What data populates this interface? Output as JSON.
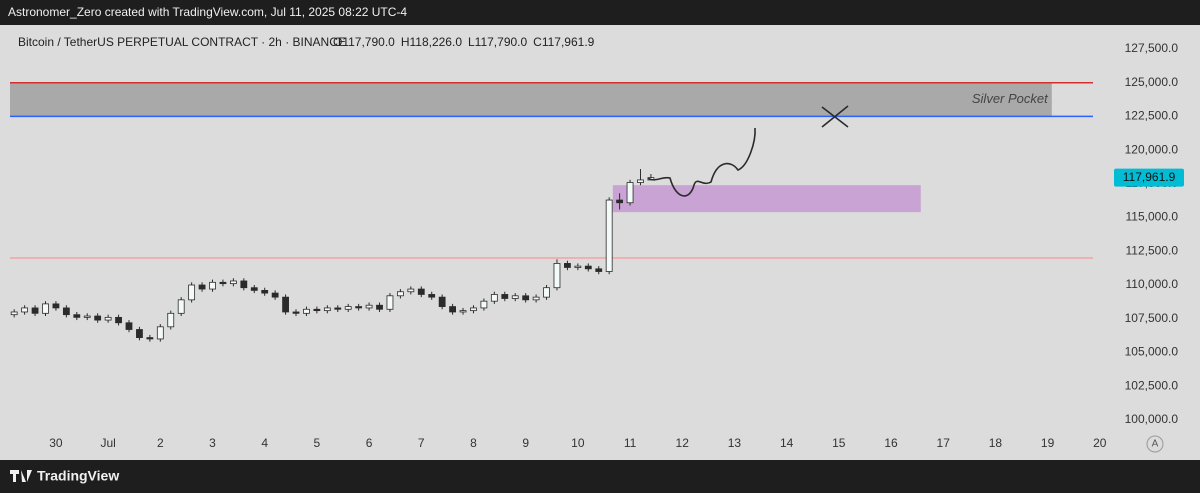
{
  "chart_data": {
    "type": "candlestick",
    "watermark": "Astronomer_Zero created with TradingView.com, Jul 11, 2025 08:22 UTC-4",
    "title": "Bitcoin / TetherUS PERPETUAL CONTRACT · 2h · BINANCE",
    "ohlc_labels": [
      "O117,790.0",
      "H118,226.0",
      "L117,790.0",
      "C117,961.9"
    ],
    "brand": "TradingView",
    "scale_mode": "A",
    "annotation": "Silver Pocket",
    "up_color": "#f4faf9",
    "down_color": "#2b2b2b",
    "x": [
      -0.8,
      -0.6,
      -0.4,
      -0.2,
      0,
      0.2,
      0.4,
      0.6,
      0.8,
      1,
      1.2,
      1.4,
      1.6,
      1.8,
      2,
      2.2,
      2.4,
      2.6,
      2.8,
      3,
      3.2,
      3.4,
      3.6,
      3.8,
      4,
      4.2,
      4.4,
      4.6,
      4.8,
      5,
      5.2,
      5.4,
      5.6,
      5.8,
      6,
      6.2,
      6.4,
      6.6,
      6.8,
      7,
      7.2,
      7.4,
      7.6,
      7.8,
      8,
      8.2,
      8.4,
      8.6,
      8.8,
      9,
      9.2,
      9.4,
      9.6,
      9.8,
      10,
      10.2,
      10.4,
      10.6,
      10.8,
      11,
      11.2,
      11.4
    ],
    "open": [
      107800,
      108000,
      108300,
      107900,
      108600,
      108300,
      107800,
      107600,
      107700,
      107400,
      107600,
      107200,
      106700,
      106100,
      106000,
      106900,
      107900,
      108900,
      110000,
      109700,
      110200,
      110100,
      110300,
      109800,
      109600,
      109400,
      109100,
      108000,
      107900,
      108200,
      108100,
      108300,
      108200,
      108400,
      108300,
      108500,
      108200,
      109200,
      109500,
      109700,
      109300,
      109100,
      108400,
      108000,
      108100,
      108300,
      108800,
      109300,
      109000,
      109200,
      108900,
      109100,
      109800,
      111600,
      111300,
      111400,
      111200,
      111000,
      116300,
      116100,
      117600,
      117790
    ],
    "high": [
      108200,
      108500,
      108500,
      108800,
      108800,
      108500,
      108000,
      107900,
      107900,
      107800,
      107800,
      107400,
      106900,
      106300,
      107100,
      108100,
      109100,
      110200,
      110200,
      110400,
      110400,
      110500,
      110500,
      110000,
      109800,
      109600,
      109300,
      108200,
      108400,
      108400,
      108500,
      108500,
      108600,
      108600,
      108700,
      108700,
      109400,
      109700,
      109900,
      109900,
      109500,
      109300,
      108600,
      108300,
      108500,
      109000,
      109500,
      109500,
      109400,
      109400,
      109300,
      110000,
      111900,
      111800,
      111600,
      111600,
      111400,
      116500,
      116800,
      117800,
      118600,
      118226
    ],
    "low": [
      107600,
      107800,
      107700,
      107700,
      108100,
      107600,
      107400,
      107400,
      107200,
      107200,
      107000,
      106500,
      105900,
      105800,
      105800,
      106700,
      107700,
      108700,
      109500,
      109500,
      109900,
      109900,
      109600,
      109400,
      109200,
      108900,
      107800,
      107700,
      107700,
      107900,
      107900,
      108000,
      108000,
      108100,
      108100,
      108000,
      108000,
      109000,
      109300,
      109100,
      108900,
      108200,
      107800,
      107800,
      107900,
      108100,
      108600,
      108800,
      108800,
      108700,
      108700,
      108900,
      109600,
      111100,
      111100,
      111000,
      110800,
      110800,
      115600,
      115900,
      117400,
      117790
    ],
    "close": [
      108000,
      108300,
      107900,
      108600,
      108300,
      107800,
      107600,
      107700,
      107400,
      107600,
      107200,
      106700,
      106100,
      106000,
      106900,
      107900,
      108900,
      110000,
      109700,
      110200,
      110100,
      110300,
      109800,
      109600,
      109400,
      109100,
      108000,
      107900,
      108200,
      108100,
      108300,
      108200,
      108400,
      108300,
      108500,
      108200,
      109200,
      109500,
      109700,
      109300,
      109100,
      108400,
      108000,
      108100,
      108300,
      108800,
      109300,
      109000,
      109200,
      108900,
      109100,
      109800,
      111600,
      111300,
      111400,
      111200,
      111000,
      116300,
      116100,
      117600,
      117790,
      117961.9
    ],
    "last_price": {
      "value": 117961.9,
      "label": "117,961.9",
      "color": "#00bcd4"
    },
    "levels": [
      {
        "value": 125000,
        "color": "#d32f2f"
      },
      {
        "value": 122500,
        "color": "#2962ff"
      },
      {
        "value": 112000,
        "color": "#f2a3a3"
      }
    ],
    "zones": [
      {
        "low": 122500,
        "high": 125000,
        "start": -0.88,
        "end": 19.08,
        "color": "#a9a9a9"
      },
      {
        "low": 115400,
        "high": 117400,
        "start": 10.67,
        "end": 16.57,
        "color": "#c9a3d3"
      }
    ],
    "xlim": [
      -0.88,
      20.1
    ],
    "xticks": [
      {
        "value": 0,
        "label": "30"
      },
      {
        "value": 1,
        "label": "Jul"
      },
      2,
      3,
      4,
      5,
      6,
      7,
      8,
      9,
      10,
      11,
      12,
      13,
      14,
      15,
      16,
      17,
      18,
      19,
      20
    ],
    "ylim": [
      99100,
      129280
    ],
    "yticks": [
      {
        "value": 100000,
        "label": "100,000.0"
      },
      {
        "value": 102500,
        "label": "102,500.0"
      },
      {
        "value": 105000,
        "label": "105,000.0"
      },
      {
        "value": 107500,
        "label": "107,500.0"
      },
      {
        "value": 110000,
        "label": "110,000.0"
      },
      {
        "value": 112500,
        "label": "112,500.0"
      },
      {
        "value": 115000,
        "label": "115,000.0"
      },
      {
        "value": 117500,
        "label": "117,500.0"
      },
      {
        "value": 120000,
        "label": "120,000.0"
      },
      {
        "value": 122500,
        "label": "122,500.0"
      },
      {
        "value": 125000,
        "label": "125,000.0"
      },
      {
        "value": 127500,
        "label": "127,500.0"
      }
    ]
  }
}
